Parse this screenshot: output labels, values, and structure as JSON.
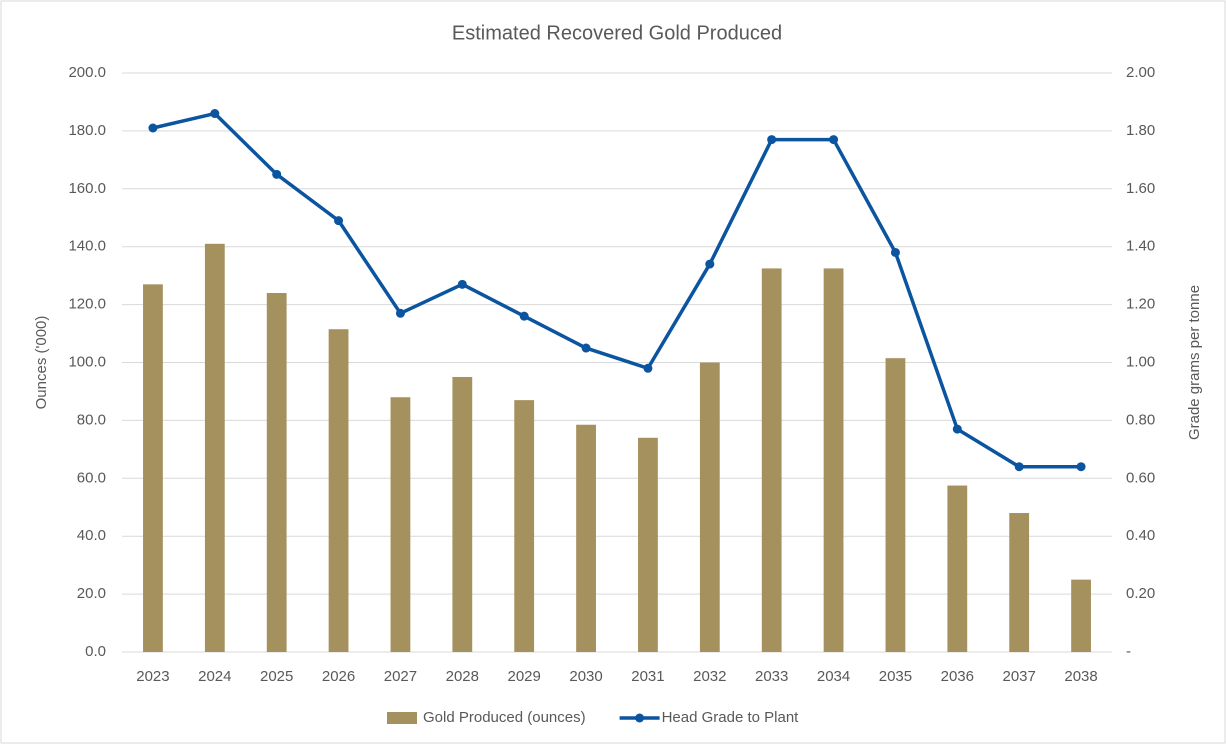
{
  "chart_data": {
    "type": "bar_line",
    "title": "Estimated Recovered Gold Produced",
    "y_label": "Ounces ('000)",
    "y2_label": "Grade grams per tonne",
    "categories": [
      "2023",
      "2024",
      "2025",
      "2026",
      "2027",
      "2028",
      "2029",
      "2030",
      "2031",
      "2032",
      "2033",
      "2034",
      "2035",
      "2036",
      "2037",
      "2038"
    ],
    "series": [
      {
        "name": "Gold Produced (ounces)",
        "type": "bar",
        "color": "#a5915e",
        "values": [
          127,
          141,
          124,
          111.5,
          88,
          95,
          87,
          78.5,
          74,
          100,
          132.5,
          132.5,
          101.5,
          57.5,
          48,
          25
        ]
      },
      {
        "name": "Head Grade to Plant",
        "type": "line",
        "axis": "y2",
        "color": "#0b54a0",
        "values": [
          1.81,
          1.86,
          1.65,
          1.49,
          1.17,
          1.27,
          1.16,
          1.05,
          0.98,
          1.34,
          1.77,
          1.77,
          1.38,
          0.77,
          0.64,
          0.64
        ]
      }
    ],
    "ylim": [
      0,
      200
    ],
    "yticks": [
      {
        "value": 0,
        "label": "0.0"
      },
      {
        "value": 20,
        "label": "20.0"
      },
      {
        "value": 40,
        "label": "40.0"
      },
      {
        "value": 60,
        "label": "60.0"
      },
      {
        "value": 80,
        "label": "80.0"
      },
      {
        "value": 100,
        "label": "100.0"
      },
      {
        "value": 120,
        "label": "120.0"
      },
      {
        "value": 140,
        "label": "140.0"
      },
      {
        "value": 160,
        "label": "160.0"
      },
      {
        "value": 180,
        "label": "180.0"
      },
      {
        "value": 200,
        "label": "200.0"
      }
    ],
    "y2lim": [
      0,
      2
    ],
    "y2ticks": [
      {
        "value": 0,
        "label": "-"
      },
      {
        "value": 0.2,
        "label": "0.20"
      },
      {
        "value": 0.4,
        "label": "0.40"
      },
      {
        "value": 0.6,
        "label": "0.60"
      },
      {
        "value": 0.8,
        "label": "0.80"
      },
      {
        "value": 1,
        "label": "1.00"
      },
      {
        "value": 1.2,
        "label": "1.20"
      },
      {
        "value": 1.4,
        "label": "1.40"
      },
      {
        "value": 1.6,
        "label": "1.60"
      },
      {
        "value": 1.8,
        "label": "1.80"
      },
      {
        "value": 2,
        "label": "2.00"
      }
    ],
    "grid": true,
    "legend": "bottom"
  }
}
